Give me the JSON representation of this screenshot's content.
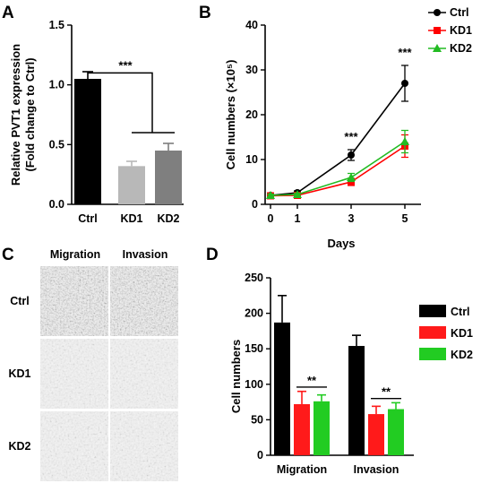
{
  "panels": {
    "A": {
      "letter": "A"
    },
    "B": {
      "letter": "B"
    },
    "C": {
      "letter": "C"
    },
    "D": {
      "letter": "D"
    }
  },
  "chart_data": [
    {
      "panel": "A",
      "type": "bar",
      "ylabel_line1": "Relative PVT1 expression",
      "ylabel_line2": "(Fold change to Ctrl)",
      "categories": [
        "Ctrl",
        "KD1",
        "KD2"
      ],
      "values": [
        1.05,
        0.32,
        0.45
      ],
      "errors": [
        0.06,
        0.04,
        0.06
      ],
      "colors": [
        "#000000",
        "#b8b8b8",
        "#7f7f7f"
      ],
      "ylim": [
        0,
        1.5
      ],
      "yticks": [
        "0.0",
        "0.5",
        "1.0",
        "1.5"
      ],
      "significance": "***"
    },
    {
      "panel": "B",
      "type": "line",
      "xlabel": "Days",
      "ylabel": "Cell numbers (×10⁵)",
      "x": [
        0,
        1,
        3,
        5
      ],
      "xticks": [
        "0",
        "1",
        "3",
        "5"
      ],
      "ylim": [
        0,
        40
      ],
      "yticks": [
        "0",
        "10",
        "20",
        "30",
        "40"
      ],
      "series": [
        {
          "name": "Ctrl",
          "values": [
            2,
            2.6,
            11,
            27
          ],
          "errors": [
            0.3,
            0.4,
            1.2,
            4
          ],
          "color": "#000000",
          "marker": "circle"
        },
        {
          "name": "KD1",
          "values": [
            1.9,
            2.0,
            5.0,
            13
          ],
          "errors": [
            0.3,
            0.3,
            0.8,
            2.5
          ],
          "color": "#ff0000",
          "marker": "square"
        },
        {
          "name": "KD2",
          "values": [
            2.0,
            2.2,
            6.0,
            14
          ],
          "errors": [
            0.3,
            0.3,
            0.9,
            2.5
          ],
          "color": "#22bb22",
          "marker": "triangle"
        }
      ],
      "legend": "top-right",
      "significance": [
        {
          "x": 3,
          "label": "***"
        },
        {
          "x": 5,
          "label": "***"
        }
      ]
    },
    {
      "panel": "D",
      "type": "bar",
      "ylabel": "Cell numbers",
      "categories": [
        "Migration",
        "Invasion"
      ],
      "ylim": [
        0,
        250
      ],
      "yticks": [
        "0",
        "50",
        "100",
        "150",
        "200",
        "250"
      ],
      "series": [
        {
          "name": "Ctrl",
          "values": [
            187,
            154
          ],
          "errors": [
            38,
            15
          ],
          "color": "#000000"
        },
        {
          "name": "KD1",
          "values": [
            72,
            58
          ],
          "errors": [
            18,
            11
          ],
          "color": "#ff1a1a"
        },
        {
          "name": "KD2",
          "values": [
            76,
            65
          ],
          "errors": [
            9,
            9
          ],
          "color": "#22cc22"
        }
      ],
      "legend": "right",
      "significance": [
        {
          "category": "Migration",
          "label": "**"
        },
        {
          "category": "Invasion",
          "label": "**"
        }
      ]
    }
  ],
  "micrographs": {
    "columns": [
      "Migration",
      "Invasion"
    ],
    "rows": [
      "Ctrl",
      "KD1",
      "KD2"
    ]
  }
}
